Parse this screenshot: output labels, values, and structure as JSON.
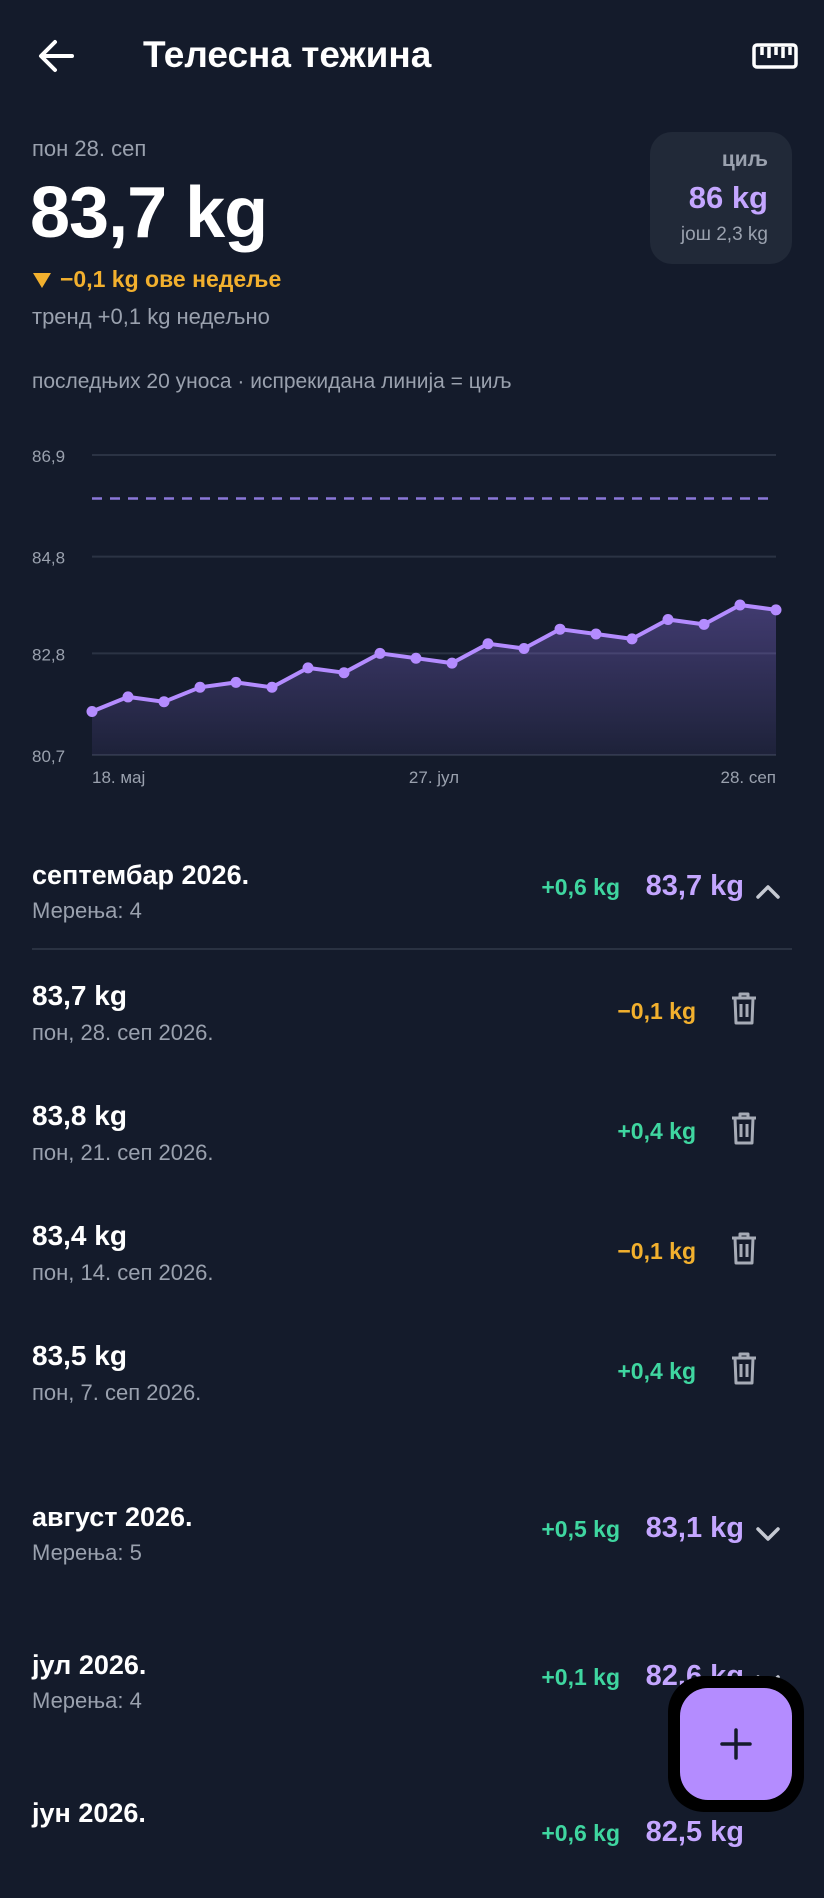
{
  "header": {
    "title": "Телесна тежина",
    "back_icon": "arrow-left-icon",
    "ruler_icon": "ruler-icon"
  },
  "summary": {
    "date": "пон 28. сеп",
    "weight": "83,7 kg",
    "weekly_change": "−0,1 kg ове недеље",
    "trend": "тренд +0,1 kg недељно",
    "goal_label": "циљ",
    "goal_value": "86 kg",
    "goal_remaining": "још 2,3 kg"
  },
  "chart_caption": "последњих 20 уноса · испрекидана линија = циљ",
  "chart_data": {
    "type": "area",
    "y_ticks": [
      "86,9",
      "84,8",
      "82,8",
      "80,7"
    ],
    "ylim": [
      80.7,
      86.9
    ],
    "x_labels": [
      "18. мај",
      "27. јул",
      "28. сеп"
    ],
    "goal": 86,
    "grid": true,
    "values": [
      81.6,
      81.9,
      81.8,
      82.1,
      82.2,
      82.1,
      82.5,
      82.4,
      82.8,
      82.7,
      82.6,
      83.0,
      82.9,
      83.3,
      83.2,
      83.1,
      83.5,
      83.4,
      83.8,
      83.7
    ]
  },
  "colors": {
    "background": "#141b2b",
    "accent": "#b48cff",
    "accent_text": "#c4a6ff",
    "positive": "#3fd6a0",
    "negative": "#f2b02e"
  },
  "months": [
    {
      "name": "септембар 2026.",
      "count": "Мерења: 4",
      "delta": "+0,6 kg",
      "delta_type": "positive",
      "avg": "83,7 kg",
      "expanded": true,
      "entries": [
        {
          "weight": "83,7 kg",
          "date": "пон, 28. сеп 2026.",
          "delta": "−0,1 kg",
          "delta_type": "negative"
        },
        {
          "weight": "83,8 kg",
          "date": "пон, 21. сеп 2026.",
          "delta": "+0,4 kg",
          "delta_type": "positive"
        },
        {
          "weight": "83,4 kg",
          "date": "пон, 14. сеп 2026.",
          "delta": "−0,1 kg",
          "delta_type": "negative"
        },
        {
          "weight": "83,5 kg",
          "date": "пон, 7. сеп 2026.",
          "delta": "+0,4 kg",
          "delta_type": "positive"
        }
      ]
    },
    {
      "name": "август 2026.",
      "count": "Мерења: 5",
      "delta": "+0,5 kg",
      "delta_type": "positive",
      "avg": "83,1 kg",
      "expanded": false
    },
    {
      "name": "јул 2026.",
      "count": "Мерења: 4",
      "delta": "+0,1 kg",
      "delta_type": "positive",
      "avg": "82,6 kg",
      "expanded": false
    },
    {
      "name": "јун 2026.",
      "count": "",
      "delta": "+0,6 kg",
      "delta_type": "positive",
      "avg": "82,5 kg",
      "expanded": false
    }
  ],
  "fab": {
    "icon": "plus-icon"
  }
}
